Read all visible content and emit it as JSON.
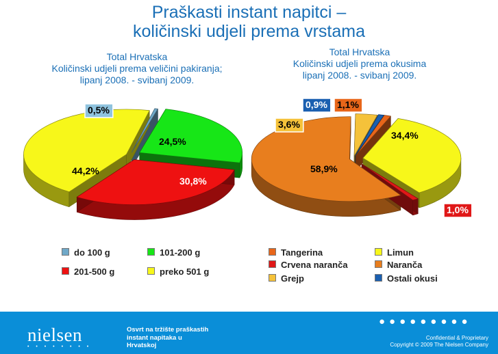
{
  "title_line1": "Praškasti instant napitci –",
  "title_line2": "količinski udjeli prema vrstama",
  "chart_data": [
    {
      "type": "pie",
      "title": "Total Hrvatska",
      "subtitle_line1": "Količinski udjeli prema veličini pakiranja;",
      "subtitle_line2": "lipanj 2008. - svibanj 2009.",
      "legend_position": "bottom",
      "slices": [
        {
          "name": "do 100 g",
          "label": "0,5%",
          "value": 0.5,
          "color": "#6fa8c8"
        },
        {
          "name": "101-200 g",
          "label": "24,5%",
          "value": 24.5,
          "color": "#17e617"
        },
        {
          "name": "201-500 g",
          "label": "30,8%",
          "value": 30.8,
          "color": "#ee1111"
        },
        {
          "name": "preko 501 g",
          "label": "44,2%",
          "value": 44.2,
          "color": "#f7f71a"
        }
      ]
    },
    {
      "type": "pie",
      "title": "Total Hrvatska",
      "subtitle_line1": "Količinski udjeli prema okusima",
      "subtitle_line2": "lipanj 2008. - svibanj 2009.",
      "legend_position": "bottom",
      "slices": [
        {
          "name": "Tangerina",
          "label": "1,1%",
          "value": 1.1,
          "color": "#e8661a"
        },
        {
          "name": "Limun",
          "label": "34,4%",
          "value": 34.4,
          "color": "#f7f71a"
        },
        {
          "name": "Crvena naranča",
          "label": "1,0%",
          "value": 1.0,
          "color": "#e01818"
        },
        {
          "name": "Naranča",
          "label": "58,9%",
          "value": 58.9,
          "color": "#e87e1e"
        },
        {
          "name": "Grejp",
          "label": "3,6%",
          "value": 3.6,
          "color": "#f5c23a"
        },
        {
          "name": "Ostali okusi",
          "label": "0,9%",
          "value": 0.9,
          "color": "#1a5fb0"
        }
      ]
    }
  ],
  "footer": {
    "logo": "nielsen",
    "logo_dots": "• • • • • • • •",
    "text_line1": "Osvrt na tržište praškastih",
    "text_line2": "instant napitaka u",
    "text_line3": "Hrvatskoj",
    "confidential": "Confidential & Proprietary",
    "copyright": "Copyright © 2009 The Nielsen Company"
  }
}
